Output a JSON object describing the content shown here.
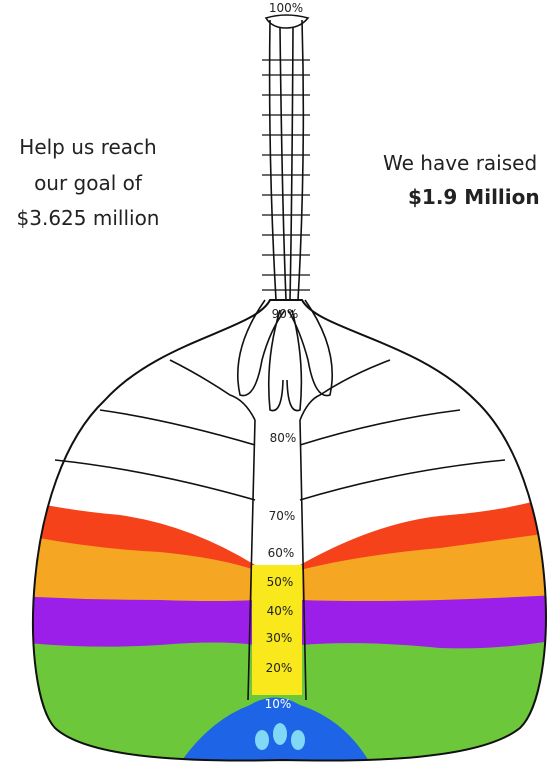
{
  "goal_text": [
    "Help us reach",
    "our goal of",
    "$3.625 million"
  ],
  "raised_text": [
    "We have raised",
    "$1.9 Million"
  ],
  "scale_labels": [
    "100%",
    "90%",
    "80%",
    "70%",
    "60%",
    "50%",
    "40%",
    "30%",
    "20%",
    "10%"
  ]
}
